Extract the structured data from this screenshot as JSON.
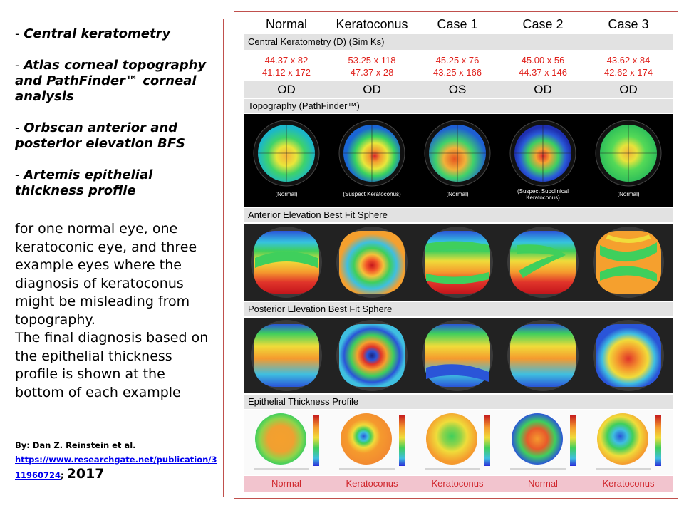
{
  "left": {
    "items": [
      {
        "dash": "- ",
        "text": "Central keratometry"
      },
      {
        "dash": "- ",
        "text": "Atlas corneal topography and PathFinder™ corneal analysis"
      },
      {
        "dash": "- ",
        "text": "Orbscan anterior and posterior elevation BFS"
      },
      {
        "dash": "- ",
        "text": "Artemis epithelial thickness profile"
      }
    ],
    "description_1": "for one normal eye, one keratoconic eye, and three example eyes where the diagnosis of keratoconus might be misleading from topography.",
    "description_2": "The final diagnosis based on the epithelial thickness profile is shown at the bottom of each example",
    "credit_by": "By: Dan Z. Reinstein et al.",
    "credit_link": "https://www.researchgate.net/publication/311960724",
    "credit_sep": ";",
    "credit_year": "2017"
  },
  "columns": [
    "Normal",
    "Keratoconus",
    "Case 1",
    "Case 2",
    "Case 3"
  ],
  "bands": {
    "keratometry": "Central Keratometry (D) (Sim Ks)",
    "topography": "Topography (PathFinder™)",
    "anterior": "Anterior Elevation Best Fit Sphere",
    "posterior": "Posterior Elevation Best Fit Sphere",
    "epithelial": "Epithelial Thickness Profile"
  },
  "keratometry": [
    {
      "line1": "44.37 x 82",
      "line2": "41.12 x 172"
    },
    {
      "line1": "53.25 x 118",
      "line2": "47.37 x  28"
    },
    {
      "line1": "45.25 x 76",
      "line2": "43.25 x  166"
    },
    {
      "line1": "45.00 x 56",
      "line2": "44.37 x 146"
    },
    {
      "line1": "43.62 x 84",
      "line2": "42.62 x 174"
    }
  ],
  "eyes": [
    "OD",
    "OD",
    "OS",
    "OD",
    "OD"
  ],
  "topography_labels": [
    {
      "line1": "(Normal)",
      "line2": ""
    },
    {
      "line1": "(Suspect Keratoconus)",
      "line2": ""
    },
    {
      "line1": "(Normal)",
      "line2": ""
    },
    {
      "line1": "(Suspect Subclinical",
      "line2": "Keratoconus)"
    },
    {
      "line1": "(Normal)",
      "line2": ""
    }
  ],
  "final_diagnosis": [
    "Normal",
    "Keratoconus",
    "Keratoconus",
    "Normal",
    "Keratoconus"
  ],
  "colors": {
    "border": "#c0504d",
    "k_text": "#e0201b",
    "dx_text": "#d0272e",
    "dx_band": "#f2c4ce"
  }
}
